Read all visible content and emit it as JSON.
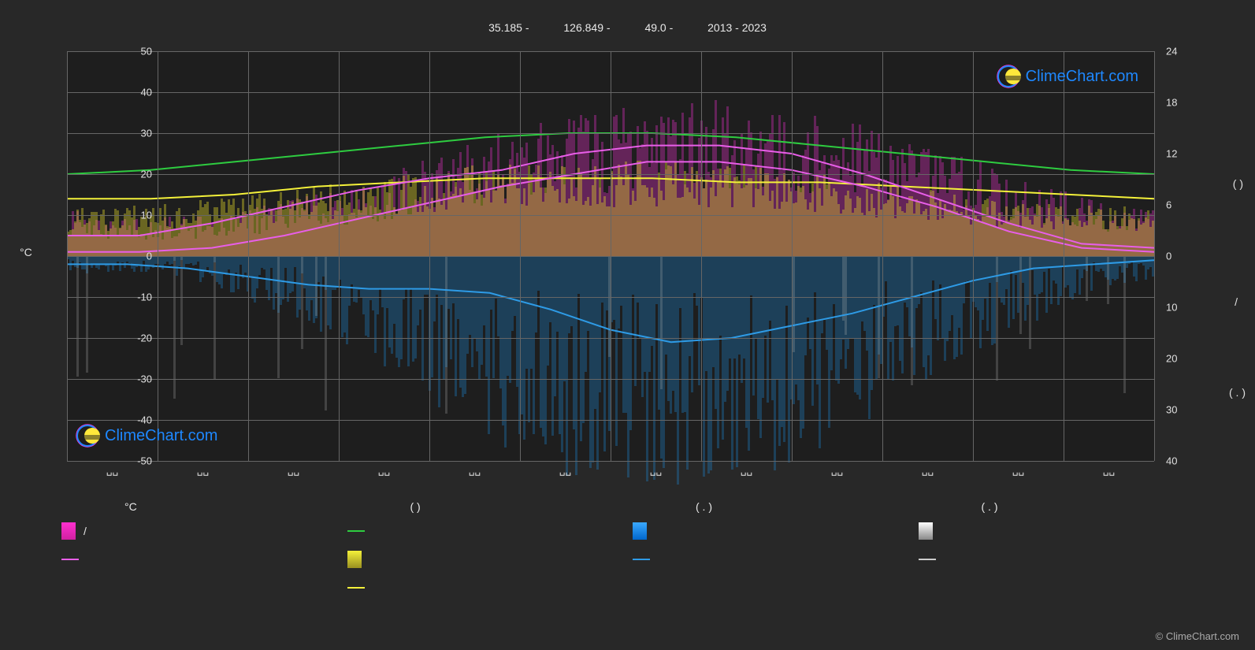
{
  "meta": {
    "lat": "35.185 -",
    "lon": "126.849 -",
    "elev": "49.0 -",
    "years": "2013 - 2023",
    "site": "ClimeChart.com",
    "copyright": "© ClimeChart.com"
  },
  "chart": {
    "type": "climate-overlay",
    "background_color": "#1e1e1e",
    "page_background": "#282828",
    "grid_color": "#666666",
    "left_axis": {
      "title": "°C",
      "min": -50,
      "max": 50,
      "ticks": [
        -50,
        -40,
        -30,
        -20,
        -10,
        0,
        10,
        20,
        30,
        40,
        50
      ]
    },
    "right_axis": {
      "min_top": 24,
      "ticks_top": [
        24,
        18,
        12,
        6,
        0
      ],
      "ticks_bottom": [
        10,
        20,
        30,
        40
      ]
    },
    "right_axis_symbols": {
      "upper": "( )",
      "mid": "/",
      "lower": "( . )"
    },
    "x_ticks": [
      "",
      "",
      "",
      "",
      "",
      "",
      "",
      "",
      "",
      "",
      "",
      ""
    ],
    "series": {
      "green_line": {
        "color": "#2ecc40",
        "width": 2,
        "points": [
          20,
          21,
          23,
          25,
          27,
          29,
          30,
          30,
          29,
          27,
          25,
          23,
          21,
          20
        ]
      },
      "yellow_line": {
        "color": "#f4f13a",
        "width": 2,
        "points": [
          14,
          14,
          15,
          17,
          18,
          19,
          19,
          19,
          18,
          18,
          17,
          16,
          15,
          14
        ]
      },
      "magenta_upper": {
        "color": "#e85ee8",
        "width": 2,
        "points": [
          5,
          5,
          8,
          12,
          16,
          19,
          21,
          25,
          27,
          27,
          25,
          20,
          14,
          8,
          3,
          2
        ]
      },
      "magenta_lower": {
        "color": "#e85ee8",
        "width": 2,
        "points": [
          1,
          1,
          2,
          5,
          9,
          13,
          17,
          20,
          23,
          23,
          21,
          17,
          12,
          6,
          2,
          1
        ]
      },
      "blue_line": {
        "color": "#2e9be6",
        "width": 2,
        "points": [
          -2,
          -2,
          -3,
          -5,
          -7,
          -8,
          -8,
          -9,
          -13,
          -18,
          -21,
          -20,
          -17,
          -14,
          -10,
          -6,
          -3,
          -2,
          -1
        ]
      }
    },
    "bar_layers": {
      "magenta_bars": {
        "color": "rgba(232,50,200,0.35)",
        "baseline": 0,
        "density": "high"
      },
      "yellow_bars": {
        "color": "rgba(220,210,40,0.4)",
        "baseline": 0,
        "density": "high"
      },
      "blue_bars": {
        "color": "rgba(30,130,200,0.35)",
        "baseline": 0,
        "density": "high"
      },
      "gray_bars": {
        "color": "rgba(180,180,180,0.25)",
        "baseline": 0,
        "density": "low"
      }
    }
  },
  "legend": {
    "headers": [
      "°C",
      "( )",
      "( . )",
      "( . )"
    ],
    "rows": [
      [
        {
          "type": "box",
          "color": "linear-gradient(180deg,#ff30d0,#d020a0)",
          "label": "/"
        },
        {
          "type": "line",
          "color": "#2ecc40",
          "label": ""
        },
        {
          "type": "box",
          "color": "linear-gradient(180deg,#3aa8ff,#0066cc)",
          "label": ""
        },
        {
          "type": "box",
          "color": "linear-gradient(180deg,#fff,#888)",
          "label": ""
        }
      ],
      [
        {
          "type": "line",
          "color": "#e85ee8",
          "label": ""
        },
        {
          "type": "box",
          "color": "linear-gradient(180deg,#f4f13a,#9a9020)",
          "label": ""
        },
        {
          "type": "line",
          "color": "#2e9be6",
          "label": ""
        },
        {
          "type": "line",
          "color": "#cccccc",
          "label": ""
        }
      ],
      [
        null,
        {
          "type": "line",
          "color": "#f4f13a",
          "label": ""
        },
        null,
        null
      ]
    ]
  }
}
